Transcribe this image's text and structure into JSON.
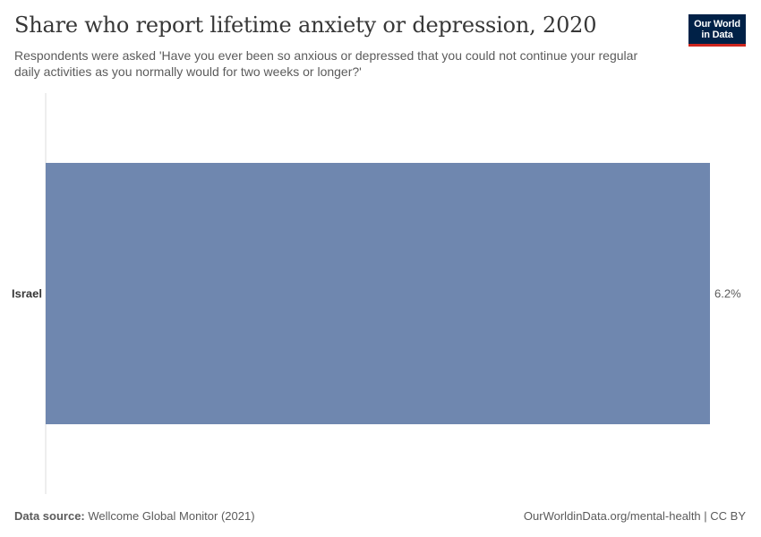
{
  "header": {
    "title": "Share who report lifetime anxiety or depression, 2020",
    "subtitle": "Respondents were asked 'Have you ever been so anxious or depressed that you could not continue your regular daily activities as you normally would for two weeks or longer?'",
    "logo_line1": "Our World",
    "logo_line2": "in Data"
  },
  "colors": {
    "bar": "#6f87af",
    "axis": "#dddddd",
    "text": "#5b5b5b",
    "label": "#373737",
    "brand": "#002147",
    "brand_accent": "#ce261e"
  },
  "chart_data": {
    "type": "bar",
    "orientation": "horizontal",
    "categories": [
      "Israel"
    ],
    "values": [
      6.2
    ],
    "value_labels": [
      "6.2%"
    ],
    "unit": "%",
    "xlim": [
      0,
      6.2
    ],
    "grid": false,
    "legend": "none"
  },
  "footer": {
    "source_label": "Data source:",
    "source_text": "Wellcome Global Monitor (2021)",
    "url": "OurWorldinData.org/mental-health | CC BY"
  }
}
